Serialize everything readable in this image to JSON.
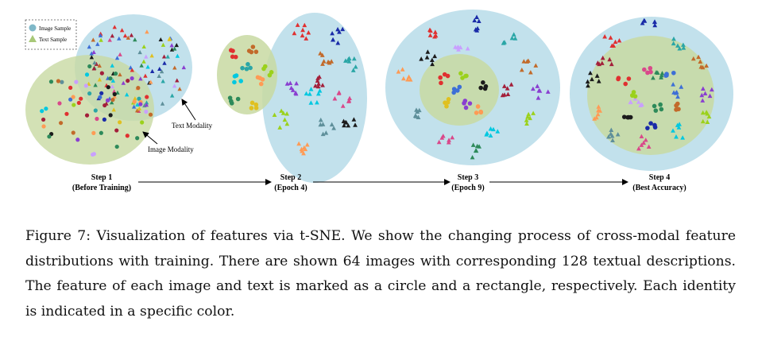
{
  "legend": {
    "image_label": "Image Sample",
    "text_label": "Text Sample"
  },
  "annotations": {
    "text_modality": "Text Modality",
    "image_modality": "Image Modality"
  },
  "steps": [
    {
      "title": "Step 1",
      "subtitle": "(Before Training)"
    },
    {
      "title": "Step 2",
      "subtitle": "(Epoch 4)"
    },
    {
      "title": "Step 3",
      "subtitle": "(Epoch 9)"
    },
    {
      "title": "Step 4",
      "subtitle": "(Best Accuracy)"
    }
  ],
  "colors": {
    "text_region": "#a9d6e5",
    "image_region": "#c9d9a0",
    "identities": [
      "#e03030",
      "#1a2ba8",
      "#2aa6a6",
      "#c26a2a",
      "#8a3fd0",
      "#9bd11b",
      "#00c8e0",
      "#d9488a",
      "#5e8f9a",
      "#ff9b55",
      "#1b1b1b",
      "#a31f3a",
      "#2d8a5a",
      "#c9a0ff",
      "#3d6fd6",
      "#e0c020"
    ]
  },
  "caption": {
    "label": "Figure 7:",
    "text": "Visualization of features via t-SNE. We show the changing process of cross-modal feature distributions with training. There are shown 64 images with corresponding 128 textual descriptions. The feature of each image and text is marked as a circle and a rectangle, respectively. Each identity is indicated in a specific color."
  }
}
